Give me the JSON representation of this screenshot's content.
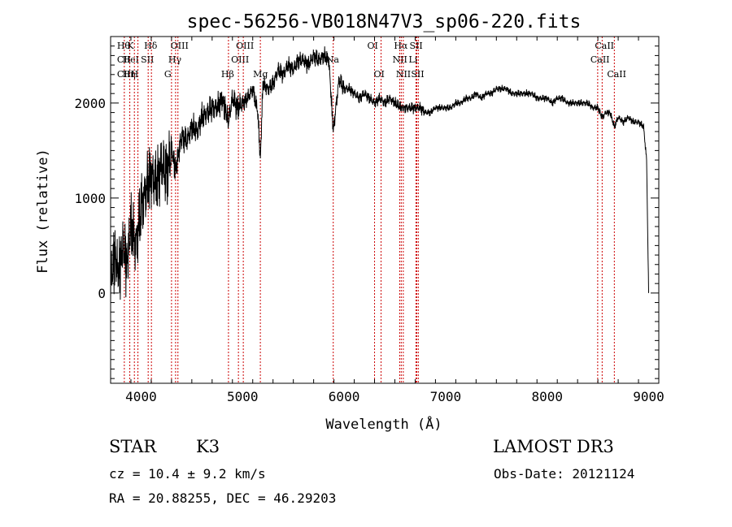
{
  "chart_data": {
    "type": "line",
    "title": "spec-56256-VB018N47V3_sp06-220.fits",
    "xlabel": "Wavelength (Å)",
    "ylabel": "Flux (relative)",
    "xlim": [
      3700,
      9100
    ],
    "ylim": [
      -950,
      2700
    ],
    "x_ticks": [
      4000,
      5000,
      6000,
      7000,
      8000,
      9000
    ],
    "x_tick_labels": [
      "4000",
      "5000",
      "6000",
      "7000",
      "8000",
      "9000"
    ],
    "y_ticks": [
      0,
      1000,
      2000
    ],
    "y_tick_labels": [
      "0",
      "1000",
      "2000"
    ],
    "grid": false,
    "line_color": "#000000",
    "marker_color": "#cc0000",
    "series": [
      {
        "name": "spectrum",
        "x": [
          3700,
          3740,
          3780,
          3820,
          3860,
          3900,
          3950,
          4000,
          4050,
          4100,
          4150,
          4200,
          4250,
          4300,
          4340,
          4400,
          4450,
          4500,
          4550,
          4600,
          4650,
          4700,
          4750,
          4800,
          4861,
          4900,
          4950,
          5000,
          5050,
          5100,
          5150,
          5175,
          5200,
          5250,
          5300,
          5350,
          5400,
          5450,
          5500,
          5550,
          5600,
          5650,
          5700,
          5750,
          5800,
          5850,
          5893,
          5950,
          6000,
          6050,
          6100,
          6150,
          6200,
          6250,
          6300,
          6350,
          6400,
          6450,
          6500,
          6563,
          6600,
          6650,
          6700,
          6750,
          6800,
          6850,
          6900,
          6950,
          7000,
          7050,
          7100,
          7150,
          7200,
          7250,
          7300,
          7350,
          7400,
          7450,
          7500,
          7550,
          7600,
          7650,
          7700,
          7750,
          7800,
          7850,
          7900,
          7950,
          8000,
          8050,
          8100,
          8150,
          8200,
          8250,
          8300,
          8350,
          8400,
          8450,
          8500,
          8542,
          8580,
          8620,
          8662,
          8700,
          8750,
          8800,
          8850,
          8900,
          8950,
          8980,
          9000
        ],
        "y": [
          100,
          400,
          200,
          500,
          300,
          700,
          500,
          900,
          1100,
          1250,
          1150,
          1350,
          1250,
          1500,
          1300,
          1650,
          1600,
          1750,
          1700,
          1850,
          1900,
          1950,
          1950,
          2050,
          1800,
          2050,
          1950,
          2000,
          2050,
          2150,
          1900,
          1400,
          2200,
          2150,
          2200,
          2350,
          2300,
          2400,
          2350,
          2450,
          2450,
          2400,
          2500,
          2450,
          2500,
          2450,
          1700,
          2250,
          2150,
          2150,
          2100,
          2050,
          2100,
          2050,
          2000,
          2050,
          2000,
          2050,
          2000,
          1950,
          1950,
          1950,
          1950,
          1950,
          1900,
          1900,
          1950,
          1950,
          1950,
          1950,
          2000,
          2000,
          2050,
          2050,
          2100,
          2050,
          2100,
          2100,
          2150,
          2150,
          2150,
          2100,
          2100,
          2100,
          2100,
          2100,
          2050,
          2050,
          2050,
          2000,
          2050,
          2050,
          2000,
          2000,
          2000,
          2000,
          2000,
          1950,
          1950,
          1850,
          1900,
          1900,
          1750,
          1850,
          1800,
          1850,
          1800,
          1800,
          1750,
          1400,
          0
        ]
      }
    ],
    "line_markers": [
      {
        "wavelength": 3835,
        "top": "Hθ",
        "mid": "CII",
        "low": "CIII"
      },
      {
        "wavelength": 3889,
        "top": "",
        "mid": "HeI",
        "low": "Hη"
      },
      {
        "wavelength": 3934,
        "top": "K",
        "mid": "",
        "low": ""
      },
      {
        "wavelength": 3969,
        "top": "",
        "mid": "",
        "low": "H"
      },
      {
        "wavelength": 4070,
        "top": "",
        "mid": "SII",
        "low": ""
      },
      {
        "wavelength": 4102,
        "top": "Hδ",
        "mid": "",
        "low": ""
      },
      {
        "wavelength": 4300,
        "top": "",
        "mid": "",
        "low": "G"
      },
      {
        "wavelength": 4340,
        "top": "",
        "mid": "Hγ",
        "low": ""
      },
      {
        "wavelength": 4363,
        "top": "OIII",
        "mid": "",
        "low": ""
      },
      {
        "wavelength": 4861,
        "top": "",
        "mid": "",
        "low": "Hβ"
      },
      {
        "wavelength": 4959,
        "top": "",
        "mid": "OIII",
        "low": ""
      },
      {
        "wavelength": 5007,
        "top": "OIII",
        "mid": "",
        "low": ""
      },
      {
        "wavelength": 5175,
        "top": "",
        "mid": "",
        "low": "Mg"
      },
      {
        "wavelength": 5893,
        "top": "",
        "mid": "Na",
        "low": ""
      },
      {
        "wavelength": 6300,
        "top": "OI",
        "mid": "",
        "low": ""
      },
      {
        "wavelength": 6364,
        "top": "",
        "mid": "",
        "low": "OI"
      },
      {
        "wavelength": 6548,
        "top": "",
        "mid": "NII",
        "low": ""
      },
      {
        "wavelength": 6563,
        "top": "Hα",
        "mid": "",
        "low": ""
      },
      {
        "wavelength": 6583,
        "top": "",
        "mid": "",
        "low": "NII"
      },
      {
        "wavelength": 6708,
        "top": "",
        "mid": "Li",
        "low": ""
      },
      {
        "wavelength": 6716,
        "top": "SII",
        "mid": "",
        "low": ""
      },
      {
        "wavelength": 6731,
        "top": "",
        "mid": "",
        "low": "SII"
      },
      {
        "wavelength": 8498,
        "top": "",
        "mid": "CaII",
        "low": ""
      },
      {
        "wavelength": 8542,
        "top": "CaII",
        "mid": "",
        "low": ""
      },
      {
        "wavelength": 8662,
        "top": "",
        "mid": "",
        "low": "CaII"
      }
    ]
  },
  "info": {
    "object_class": "STAR",
    "subclass": "K3",
    "survey": "LAMOST DR3",
    "redshift": "cz = 10.4 ± 9.2 km/s",
    "obs_date": "Obs-Date: 20121124",
    "coords": "RA =  20.88255, DEC =  46.29203"
  }
}
